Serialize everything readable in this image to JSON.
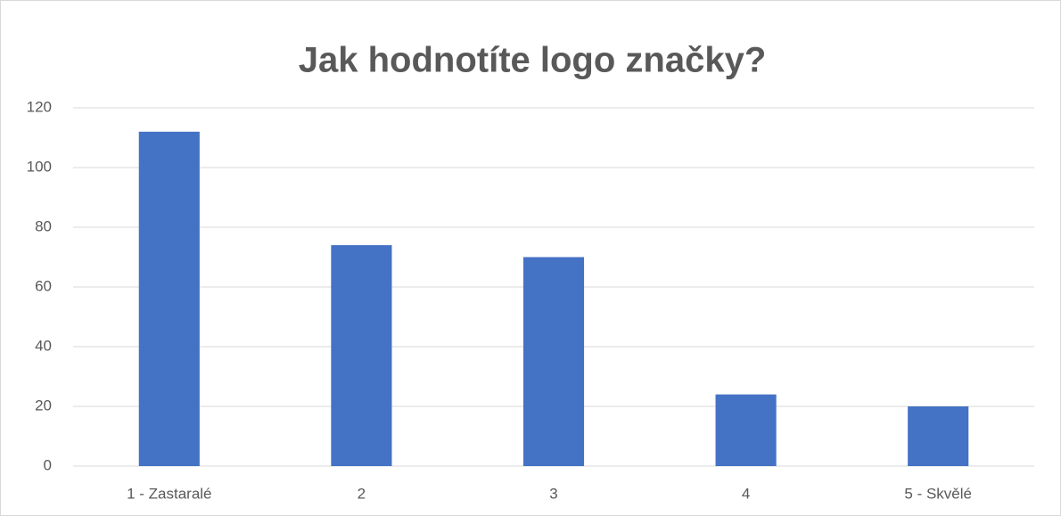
{
  "chart_data": {
    "type": "bar",
    "title": "Jak hodnotíte logo značky?",
    "categories": [
      "1 - Zastaralé",
      "2",
      "3",
      "4",
      "5 - Skvělé"
    ],
    "values": [
      112,
      74,
      70,
      24,
      20
    ],
    "color": "#4472c4",
    "ylim": [
      0,
      120
    ],
    "yticks": [
      0,
      20,
      40,
      60,
      80,
      100,
      120
    ],
    "grid": true
  }
}
